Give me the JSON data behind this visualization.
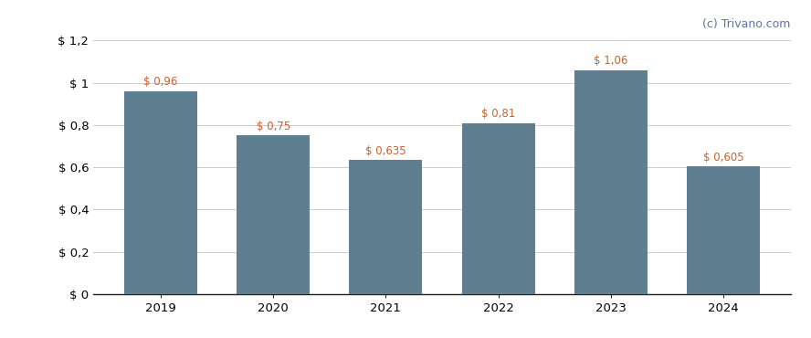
{
  "categories": [
    "2019",
    "2020",
    "2021",
    "2022",
    "2023",
    "2024"
  ],
  "values": [
    0.96,
    0.75,
    0.635,
    0.81,
    1.06,
    0.605
  ],
  "labels": [
    "$ 0,96",
    "$ 0,75",
    "$ 0,635",
    "$ 0,81",
    "$ 1,06",
    "$ 0,605"
  ],
  "bar_color": "#5f7f91",
  "background_color": "#ffffff",
  "label_color": "#c8622e",
  "watermark_text": "(c) Trivano.com",
  "watermark_color": "#5577aa",
  "ylim": [
    0,
    1.2
  ],
  "yticks": [
    0,
    0.2,
    0.4,
    0.6,
    0.8,
    1.0,
    1.2
  ],
  "ytick_labels": [
    "$ 0",
    "$ 0,2",
    "$ 0,4",
    "$ 0,6",
    "$ 0,8",
    "$ 1",
    "$ 1,2"
  ],
  "grid_color": "#cccccc",
  "bar_width": 0.65,
  "label_fontsize": 8.5,
  "tick_fontsize": 9.5,
  "watermark_fontsize": 9
}
